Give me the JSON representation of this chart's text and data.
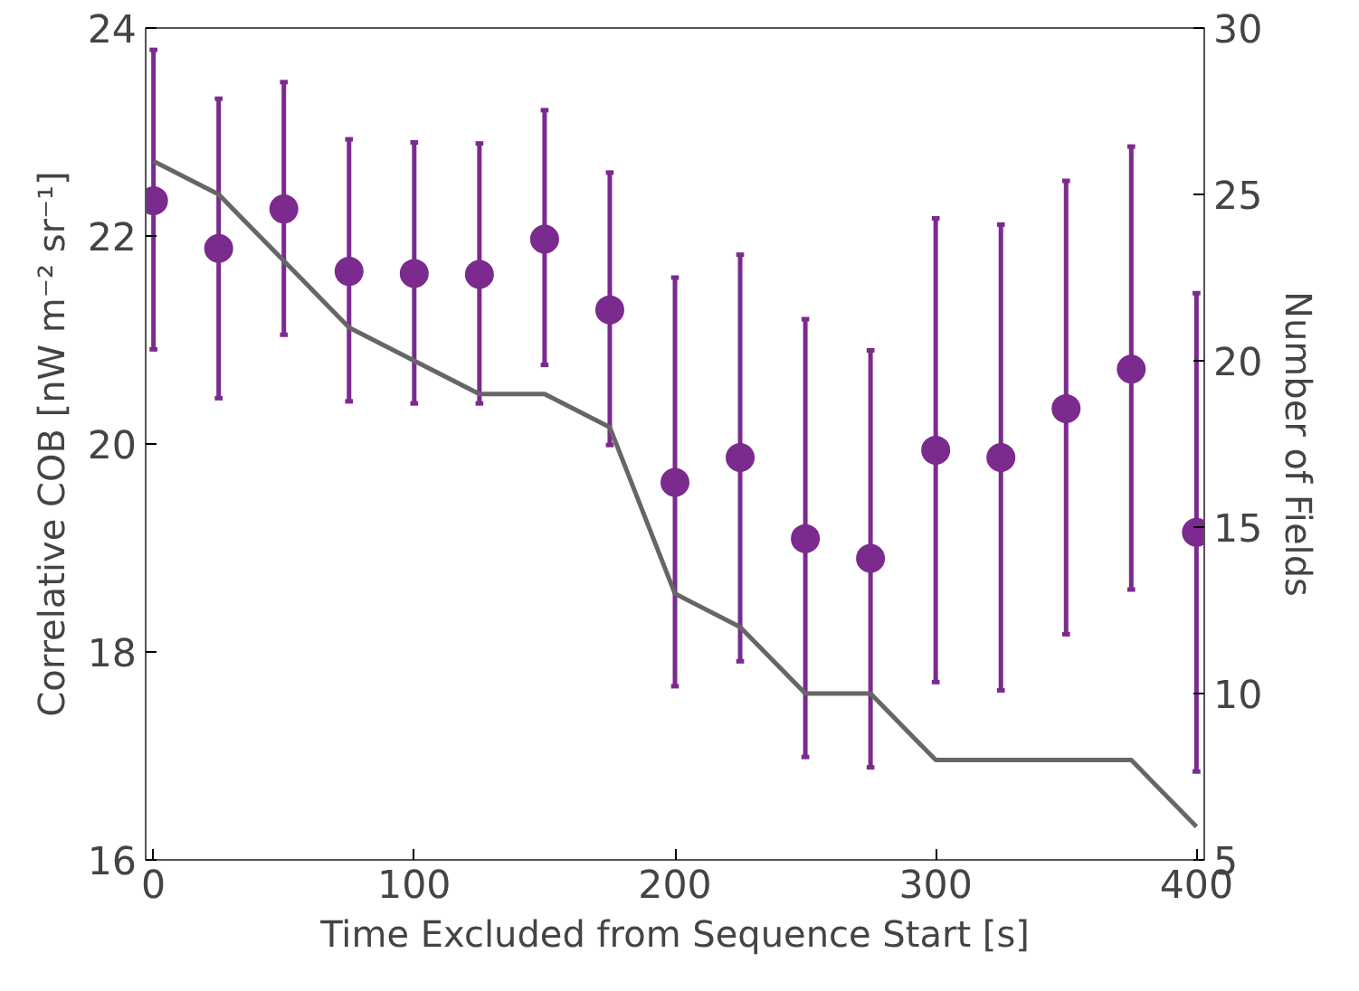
{
  "chart_data": {
    "type": "scatter",
    "xlabel": "Time Excluded from Sequence Start [s]",
    "ylabel": "Correlative COB [nW m⁻² sr⁻¹]",
    "y2label": "Number of Fields",
    "x": [
      0,
      25,
      50,
      75,
      100,
      125,
      150,
      175,
      200,
      225,
      250,
      275,
      300,
      325,
      350,
      375,
      400
    ],
    "series": [
      {
        "marker": "circle",
        "color": "#7b2a8e",
        "values": [
          22.34,
          21.88,
          22.26,
          21.66,
          21.64,
          21.63,
          21.97,
          21.29,
          19.63,
          19.87,
          19.09,
          18.9,
          19.94,
          19.87,
          20.34,
          20.72,
          19.15
        ],
        "errors": [
          [
            20.91,
            23.79
          ],
          [
            20.44,
            23.32
          ],
          [
            21.05,
            23.48
          ],
          [
            20.41,
            22.93
          ],
          [
            20.39,
            22.9
          ],
          [
            20.39,
            22.89
          ],
          [
            20.76,
            23.21
          ],
          [
            19.99,
            22.61
          ],
          [
            17.67,
            21.6
          ],
          [
            17.91,
            21.82
          ],
          [
            16.99,
            21.2
          ],
          [
            16.89,
            20.9
          ],
          [
            17.71,
            22.17
          ],
          [
            17.63,
            22.11
          ],
          [
            18.17,
            22.53
          ],
          [
            18.6,
            22.86
          ],
          [
            16.85,
            21.45
          ]
        ]
      },
      {
        "type": "line",
        "axis": "y2",
        "color": "#666666",
        "values": [
          26,
          25,
          23,
          21,
          20,
          19,
          19,
          18,
          13,
          12,
          10,
          10,
          8,
          8,
          8,
          8,
          6
        ]
      }
    ],
    "xlim": [
      -3,
      403
    ],
    "xticks": [
      0,
      100,
      200,
      300,
      400
    ],
    "ylim": [
      16,
      24
    ],
    "yticks": [
      16,
      18,
      20,
      22,
      24
    ],
    "y2lim": [
      5,
      30
    ],
    "y2ticks": [
      5,
      10,
      15,
      20,
      25,
      30
    ],
    "grid": false
  }
}
